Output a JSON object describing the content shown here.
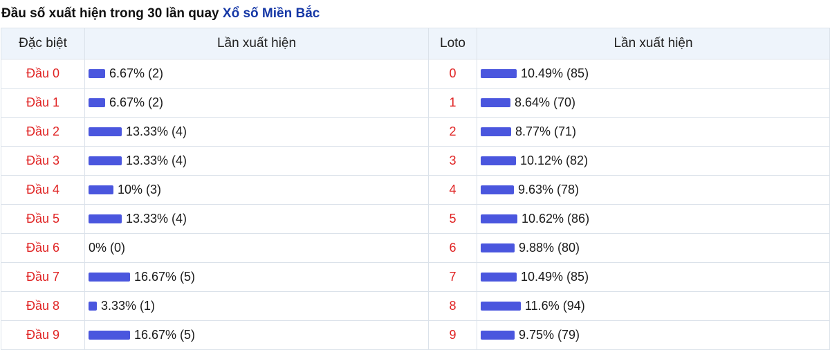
{
  "header": {
    "title_text": "Đầu số xuất hiện trong 30 lần quay",
    "link_text": "Xổ số Miền Bắc"
  },
  "columns": {
    "special": "Đặc biệt",
    "special_freq": "Lần xuất hiện",
    "loto": "Loto",
    "loto_freq": "Lần xuất hiện"
  },
  "colors": {
    "accent_bar": "#4a56de",
    "label_red": "#e02424",
    "link_blue": "#1638a6"
  },
  "rows": [
    {
      "special_label": "Đầu 0",
      "special_pct": 6.67,
      "special_text": "6.67% (2)",
      "loto_label": "0",
      "loto_pct": 10.49,
      "loto_text": "10.49% (85)"
    },
    {
      "special_label": "Đầu 1",
      "special_pct": 6.67,
      "special_text": "6.67% (2)",
      "loto_label": "1",
      "loto_pct": 8.64,
      "loto_text": "8.64% (70)"
    },
    {
      "special_label": "Đầu 2",
      "special_pct": 13.33,
      "special_text": "13.33% (4)",
      "loto_label": "2",
      "loto_pct": 8.77,
      "loto_text": "8.77% (71)"
    },
    {
      "special_label": "Đầu 3",
      "special_pct": 13.33,
      "special_text": "13.33% (4)",
      "loto_label": "3",
      "loto_pct": 10.12,
      "loto_text": "10.12% (82)"
    },
    {
      "special_label": "Đầu 4",
      "special_pct": 10,
      "special_text": "10% (3)",
      "loto_label": "4",
      "loto_pct": 9.63,
      "loto_text": "9.63% (78)"
    },
    {
      "special_label": "Đầu 5",
      "special_pct": 13.33,
      "special_text": "13.33% (4)",
      "loto_label": "5",
      "loto_pct": 10.62,
      "loto_text": "10.62% (86)"
    },
    {
      "special_label": "Đầu 6",
      "special_pct": 0,
      "special_text": "0% (0)",
      "loto_label": "6",
      "loto_pct": 9.88,
      "loto_text": "9.88% (80)"
    },
    {
      "special_label": "Đầu 7",
      "special_pct": 16.67,
      "special_text": "16.67% (5)",
      "loto_label": "7",
      "loto_pct": 10.49,
      "loto_text": "10.49% (85)"
    },
    {
      "special_label": "Đầu 8",
      "special_pct": 3.33,
      "special_text": "3.33% (1)",
      "loto_label": "8",
      "loto_pct": 11.6,
      "loto_text": "11.6% (94)"
    },
    {
      "special_label": "Đầu 9",
      "special_pct": 16.67,
      "special_text": "16.67% (5)",
      "loto_label": "9",
      "loto_pct": 9.75,
      "loto_text": "9.75% (79)"
    }
  ]
}
